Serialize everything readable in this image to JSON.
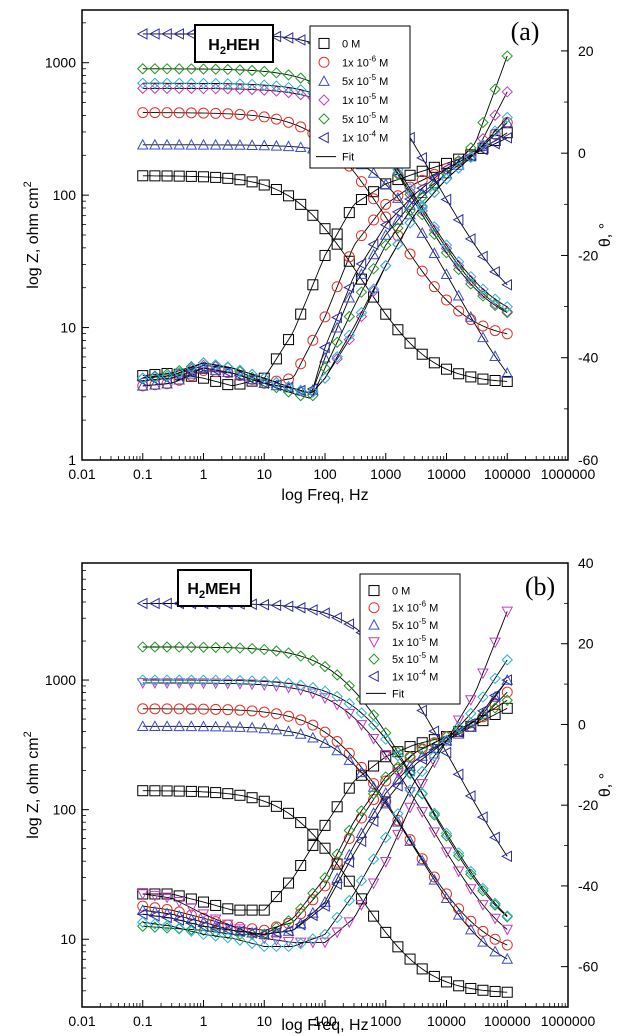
{
  "figure": {
    "panels": [
      {
        "panel_label": "(a)",
        "compound": "H2HEH",
        "compound_main": "H",
        "compound_sub": "2",
        "compound_rest": "HEH",
        "x_label": "log Freq, Hz",
        "y_left_label": "log Z, ohm cm",
        "y_left_label_sup": "2",
        "y_right_label": "θ, °",
        "x_ticks": [
          "0.01",
          "0.1",
          "1",
          "10",
          "100",
          "1000",
          "10000",
          "100000",
          "1000000"
        ],
        "y_left_ticks": [
          "1",
          "10",
          "100",
          "1000"
        ],
        "y_right_ticks": [
          "-60",
          "-40",
          "-20",
          "0",
          "20"
        ]
      },
      {
        "panel_label": "(b)",
        "compound": "H2MEH",
        "compound_main": "H",
        "compound_sub": "2",
        "compound_rest": "MEH",
        "x_label": "log Freq, Hz",
        "y_left_label": "log Z, ohm cm",
        "y_left_label_sup": "2",
        "y_right_label": "θ, °",
        "x_ticks": [
          "0.01",
          "0.1",
          "1",
          "10",
          "100",
          "1000",
          "10000",
          "100000",
          "1000000"
        ],
        "y_left_ticks": [
          "10",
          "100",
          "1000"
        ],
        "y_right_ticks": [
          "-60",
          "-40",
          "-20",
          "0",
          "20",
          "40"
        ]
      }
    ],
    "legend": {
      "entries": [
        {
          "label": "0 M",
          "mantissa": "",
          "exp": "",
          "color": "#000000",
          "marker": "square"
        },
        {
          "label": "1x 10",
          "mantissa": "1x 10",
          "exp": "-6",
          "unit": " M",
          "color": "#e8302a",
          "marker": "circle"
        },
        {
          "label": "5x 10",
          "mantissa": "5x 10",
          "exp": "-5",
          "unit": " M",
          "color": "#3a4fc8",
          "marker": "triangle-up"
        },
        {
          "label": "1x 10",
          "mantissa": "1x 10",
          "exp": "-5",
          "unit": " M",
          "color": "#c43cc4",
          "marker": "triangle-down"
        },
        {
          "label": "5x 10",
          "mantissa": "5x 10",
          "exp": "-5",
          "unit": " M",
          "color": "#1f9a1f",
          "marker": "diamond"
        },
        {
          "label": "1x 10",
          "mantissa": "1x 10",
          "exp": "-4",
          "unit": " M",
          "color": "#2c2ca8",
          "marker": "triangle-left"
        }
      ],
      "fit_label": "Fit",
      "fit_color": "#000000",
      "note": "panel (a) draws the 1x10^-5 M series as a diamond marker; the 5x10^-5 M (2nd) sixth entry color in (a) is cyan-like in the plot"
    }
  },
  "chart_data": [
    {
      "type": "scatter",
      "panel": "(a)",
      "title": "H2HEH",
      "xlabel": "log Freq, Hz",
      "ylabel": "log Z, ohm cm2",
      "y2label": "θ, °",
      "xscale": "log",
      "yscale": "log",
      "xlim": [
        0.01,
        1000000
      ],
      "ylim": [
        1,
        2500
      ],
      "y2lim": [
        -60,
        28
      ],
      "series": [
        {
          "name": "0 M",
          "color": "#000000",
          "marker": "square",
          "logZ": {
            "lo": 3.8,
            "hi": 140,
            "knee": 60,
            "n": 0.95
          },
          "phase": [
            [
              0.1,
              -43.5
            ],
            [
              0.3,
              -43
            ],
            [
              1,
              -44
            ],
            [
              3,
              -45.5
            ],
            [
              10,
              -44
            ],
            [
              30,
              -35
            ],
            [
              100,
              -20
            ],
            [
              300,
              -10
            ],
            [
              1000,
              -6
            ],
            [
              3000,
              -4
            ],
            [
              10000,
              -2
            ],
            [
              30000,
              0
            ],
            [
              100000,
              4
            ]
          ]
        },
        {
          "name": "1x 10-6 M",
          "color": "#e8302a",
          "marker": "circle",
          "logZ": {
            "lo": 8.0,
            "hi": 420,
            "knee": 150,
            "n": 0.93
          },
          "phase": [
            [
              0.1,
              -45.5
            ],
            [
              0.3,
              -45
            ],
            [
              1,
              -42.5
            ],
            [
              3,
              -43
            ],
            [
              10,
              -45
            ],
            [
              30,
              -44
            ],
            [
              100,
              -32
            ],
            [
              300,
              -18
            ],
            [
              1000,
              -10
            ],
            [
              3000,
              -6
            ],
            [
              10000,
              -3
            ],
            [
              30000,
              0
            ],
            [
              100000,
              6
            ]
          ]
        },
        {
          "name": "5x 10-5 M",
          "color": "#3a4fc8",
          "marker": "triangle-up",
          "logZ": {
            "lo": 1.7,
            "hi": 240,
            "knee": 1000,
            "n": 0.96
          },
          "phase": [
            [
              0.1,
              -45.5
            ],
            [
              0.3,
              -45
            ],
            [
              1,
              -42
            ],
            [
              3,
              -43
            ],
            [
              10,
              -45
            ],
            [
              30,
              -46
            ],
            [
              60,
              -47
            ],
            [
              100,
              -40
            ],
            [
              300,
              -26
            ],
            [
              1000,
              -16
            ],
            [
              3000,
              -9
            ],
            [
              10000,
              -4
            ],
            [
              30000,
              0
            ],
            [
              100000,
              6
            ]
          ]
        },
        {
          "name": "1x 10-5 M",
          "color": "#c43cc4",
          "marker": "diamond",
          "logZ": {
            "lo": 9.5,
            "hi": 640,
            "knee": 400,
            "n": 0.93
          },
          "phase": [
            [
              0.1,
              -44
            ],
            [
              0.3,
              -43.5
            ],
            [
              1,
              -41.5
            ],
            [
              3,
              -42
            ],
            [
              10,
              -44
            ],
            [
              30,
              -46
            ],
            [
              60,
              -47
            ],
            [
              100,
              -44
            ],
            [
              300,
              -35
            ],
            [
              1000,
              -22
            ],
            [
              3000,
              -12
            ],
            [
              10000,
              -5
            ],
            [
              30000,
              0
            ],
            [
              100000,
              12
            ]
          ]
        },
        {
          "name": "5x 10-5 M",
          "color": "#1f9a1f",
          "marker": "diamond",
          "logZ": {
            "lo": 9.8,
            "hi": 900,
            "knee": 250,
            "n": 0.94
          },
          "phase": [
            [
              0.1,
              -44
            ],
            [
              0.3,
              -43
            ],
            [
              1,
              -41
            ],
            [
              3,
              -42
            ],
            [
              10,
              -45
            ],
            [
              30,
              -47
            ],
            [
              60,
              -48
            ],
            [
              100,
              -42
            ],
            [
              300,
              -30
            ],
            [
              1000,
              -18
            ],
            [
              3000,
              -10
            ],
            [
              10000,
              -4
            ],
            [
              30000,
              2
            ],
            [
              100000,
              19
            ]
          ]
        },
        {
          "name": "1x 10-4 M",
          "color": "#2c2ca8",
          "marker": "triangle-left",
          "logZ": {
            "lo": 11.0,
            "hi": 1650,
            "knee": 420,
            "n": 0.93
          },
          "phase": [
            [
              0.1,
              -44.5
            ],
            [
              0.3,
              -44
            ],
            [
              1,
              -42
            ],
            [
              3,
              -43
            ],
            [
              10,
              -45
            ],
            [
              30,
              -46
            ],
            [
              60,
              -47
            ],
            [
              100,
              -38
            ],
            [
              300,
              -24
            ],
            [
              1000,
              -14
            ],
            [
              3000,
              -8
            ],
            [
              10000,
              -3
            ],
            [
              30000,
              0
            ],
            [
              100000,
              3
            ]
          ]
        },
        {
          "name": "",
          "color": "#2bb5d6",
          "marker": "diamond",
          "logZ": {
            "lo": 10.5,
            "hi": 700,
            "knee": 380,
            "n": 0.93
          },
          "phase": [
            [
              0.1,
              -44
            ],
            [
              0.3,
              -43.5
            ],
            [
              1,
              -41
            ],
            [
              3,
              -42
            ],
            [
              10,
              -44
            ],
            [
              30,
              -46
            ],
            [
              60,
              -47
            ],
            [
              100,
              -44
            ],
            [
              300,
              -34
            ],
            [
              1000,
              -22
            ],
            [
              3000,
              -12
            ],
            [
              10000,
              -5
            ],
            [
              30000,
              0
            ],
            [
              100000,
              7
            ]
          ]
        }
      ]
    },
    {
      "type": "scatter",
      "panel": "(b)",
      "title": "H2MEH",
      "xlabel": "log Freq, Hz",
      "ylabel": "log Z, ohm cm2",
      "y2label": "θ, °",
      "xscale": "log",
      "yscale": "log",
      "xlim": [
        0.01,
        1000000
      ],
      "ylim": [
        3,
        8000
      ],
      "y2lim": [
        -70,
        40
      ],
      "series": [
        {
          "name": "0 M",
          "color": "#000000",
          "marker": "square",
          "logZ": {
            "lo": 3.8,
            "hi": 140,
            "knee": 50,
            "n": 0.95
          },
          "phase": [
            [
              0.1,
              -42
            ],
            [
              0.3,
              -42
            ],
            [
              1,
              -44
            ],
            [
              3,
              -46
            ],
            [
              10,
              -46
            ],
            [
              30,
              -38
            ],
            [
              100,
              -25
            ],
            [
              300,
              -14
            ],
            [
              1000,
              -8
            ],
            [
              3000,
              -5
            ],
            [
              10000,
              -3
            ],
            [
              30000,
              0
            ],
            [
              100000,
              4
            ]
          ]
        },
        {
          "name": "1x 10-6 M",
          "color": "#e8302a",
          "marker": "circle",
          "logZ": {
            "lo": 7.2,
            "hi": 600,
            "knee": 200,
            "n": 0.93
          },
          "phase": [
            [
              0.1,
              -45
            ],
            [
              0.3,
              -46
            ],
            [
              1,
              -48
            ],
            [
              3,
              -50
            ],
            [
              10,
              -51
            ],
            [
              30,
              -49
            ],
            [
              100,
              -40
            ],
            [
              300,
              -26
            ],
            [
              1000,
              -14
            ],
            [
              3000,
              -7
            ],
            [
              10000,
              -3
            ],
            [
              30000,
              0
            ],
            [
              100000,
              8
            ]
          ]
        },
        {
          "name": "5x 10-5 M",
          "color": "#3a4fc8",
          "marker": "triangle-up",
          "logZ": {
            "lo": 5.2,
            "hi": 440,
            "knee": 300,
            "n": 0.94
          },
          "phase": [
            [
              0.1,
              -46
            ],
            [
              0.3,
              -47
            ],
            [
              1,
              -49
            ],
            [
              3,
              -51
            ],
            [
              10,
              -52
            ],
            [
              30,
              -51
            ],
            [
              100,
              -44
            ],
            [
              300,
              -30
            ],
            [
              1000,
              -17
            ],
            [
              3000,
              -9
            ],
            [
              10000,
              -4
            ],
            [
              30000,
              0
            ],
            [
              100000,
              11
            ]
          ]
        },
        {
          "name": "1x 10-5 M",
          "color": "#c43cc4",
          "marker": "triangle-down",
          "logZ": {
            "lo": 7.0,
            "hi": 950,
            "knee": 350,
            "n": 0.93
          },
          "phase": [
            [
              0.1,
              -42
            ],
            [
              0.3,
              -43
            ],
            [
              1,
              -47
            ],
            [
              3,
              -50
            ],
            [
              10,
              -53
            ],
            [
              30,
              -54
            ],
            [
              100,
              -54
            ],
            [
              300,
              -48
            ],
            [
              1000,
              -34
            ],
            [
              3000,
              -18
            ],
            [
              10000,
              -4
            ],
            [
              30000,
              8
            ],
            [
              100000,
              28
            ]
          ]
        },
        {
          "name": "5x 10-5 M",
          "color": "#1f9a1f",
          "marker": "diamond",
          "logZ": {
            "lo": 8.5,
            "hi": 1800,
            "knee": 250,
            "n": 0.94
          },
          "phase": [
            [
              0.1,
              -50
            ],
            [
              0.3,
              -50.5
            ],
            [
              1,
              -51
            ],
            [
              3,
              -52
            ],
            [
              10,
              -52
            ],
            [
              30,
              -48
            ],
            [
              100,
              -38
            ],
            [
              300,
              -24
            ],
            [
              1000,
              -13
            ],
            [
              3000,
              -7
            ],
            [
              10000,
              -3
            ],
            [
              30000,
              1
            ],
            [
              100000,
              6
            ]
          ]
        },
        {
          "name": "1x 10-4 M",
          "color": "#2c2ca8",
          "marker": "triangle-left",
          "logZ": {
            "lo": 10.5,
            "hi": 3900,
            "knee": 600,
            "n": 0.93
          },
          "phase": [
            [
              0.1,
              -47
            ],
            [
              0.3,
              -48
            ],
            [
              1,
              -50
            ],
            [
              3,
              -51
            ],
            [
              10,
              -52
            ],
            [
              30,
              -51
            ],
            [
              100,
              -45
            ],
            [
              300,
              -32
            ],
            [
              1000,
              -19
            ],
            [
              3000,
              -10
            ],
            [
              10000,
              -4
            ],
            [
              30000,
              1
            ],
            [
              100000,
              11
            ]
          ]
        },
        {
          "name": "",
          "color": "#2bb5d6",
          "marker": "diamond",
          "logZ": {
            "lo": 8.0,
            "hi": 1000,
            "knee": 500,
            "n": 0.93
          },
          "phase": [
            [
              0.1,
              -49
            ],
            [
              0.3,
              -50
            ],
            [
              1,
              -52
            ],
            [
              3,
              -53
            ],
            [
              10,
              -55
            ],
            [
              30,
              -55
            ],
            [
              100,
              -52
            ],
            [
              300,
              -42
            ],
            [
              1000,
              -28
            ],
            [
              3000,
              -14
            ],
            [
              10000,
              -4
            ],
            [
              30000,
              4
            ],
            [
              100000,
              16
            ]
          ]
        }
      ]
    }
  ]
}
